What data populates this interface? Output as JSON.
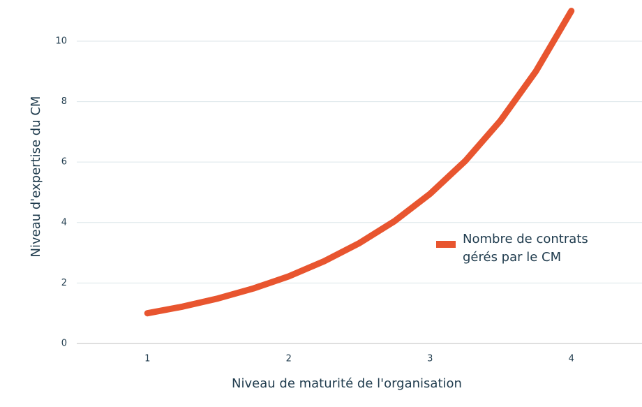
{
  "chart_data": {
    "type": "line",
    "x_label": "Niveau de maturité de l'organisation",
    "y_label": "Niveau d'expertise du CM",
    "x": [
      1,
      1.25,
      1.5,
      1.75,
      2,
      2.25,
      2.5,
      2.75,
      3,
      3.25,
      3.5,
      3.75,
      4
    ],
    "series": [
      {
        "name": "Nombre de contrats gérés par le CM",
        "color": "#e8552f",
        "values": [
          1,
          1.22,
          1.49,
          1.82,
          2.22,
          2.72,
          3.32,
          4.05,
          4.95,
          6.04,
          7.38,
          9.01,
          11.0
        ]
      }
    ],
    "xlim": [
      0.5,
      4.5
    ],
    "xticks": [
      1,
      2,
      3,
      4
    ],
    "ylim": [
      0,
      11.2
    ],
    "yticks": [
      0,
      2,
      4,
      6,
      8,
      10
    ],
    "grid": true,
    "legend_position": "right"
  }
}
